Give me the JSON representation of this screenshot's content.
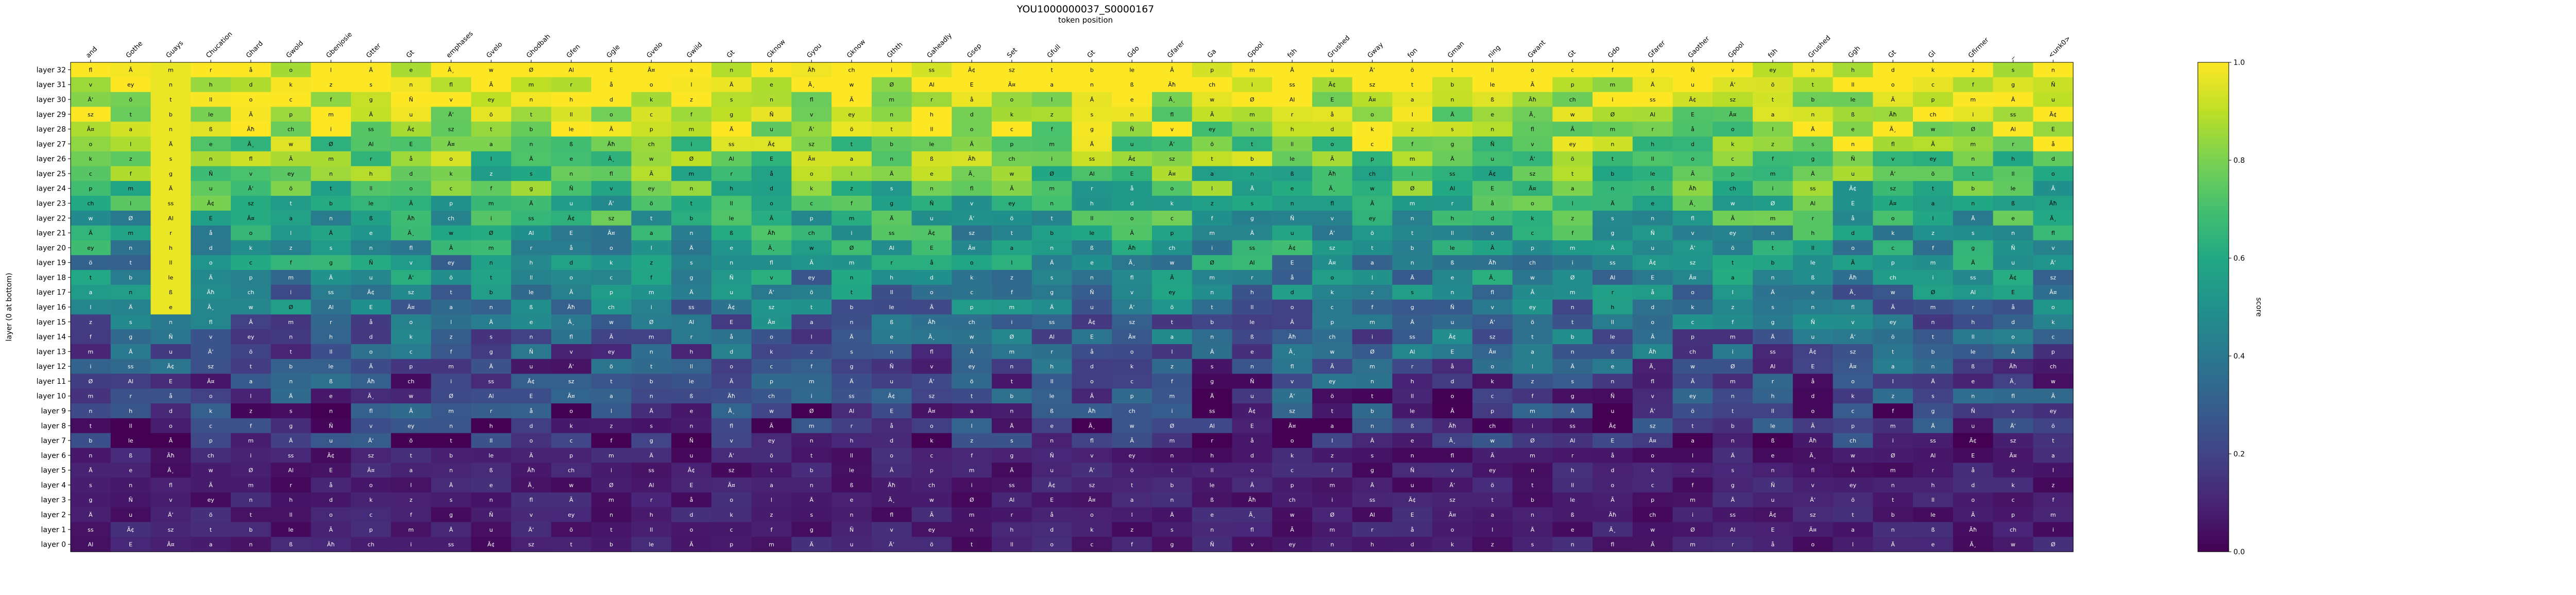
{
  "chart_data": {
    "type": "heatmap",
    "title": "YOU1000000037_S0000167",
    "subtitle": "token position",
    "ylabel": "layer (0 at bottom)",
    "colorbar_label": "score",
    "colorbar_ticks": [
      "0.0",
      "0.2",
      "0.4",
      "0.6",
      "0.8",
      "1.0"
    ],
    "value_range": [
      0,
      1
    ],
    "colormap": "viridis",
    "x_tick_labels": [
      "and",
      "Gothe",
      "Guays",
      "Chucation",
      "Ghard",
      "Gwold",
      "Gbenjosie",
      "Gtter",
      "Gt",
      "emphases",
      "Gvelo",
      "Ghodbah",
      "Gfen",
      "Ggle",
      "Gvelo",
      "Gwild",
      "Gt",
      "Gknow",
      "Gyou",
      "Gknow",
      "Gthth",
      "Gaheadly",
      "Gsep",
      "Set",
      "Gfull",
      "Gt",
      "Gdo",
      "Gfarer",
      "Ga",
      "Gpool",
      "fsh",
      "Grushed",
      "Gway",
      "fon",
      "Gman",
      "ning",
      "Gwant",
      "Gt",
      "Gdo",
      "Gfarer",
      "Gaother",
      "Gpool",
      "fsh",
      "Grushed",
      "Ggh",
      "Gt",
      "Gl",
      "Gfirmer",
      "_",
      "<unk0>"
    ],
    "y_tick_labels": [
      "layer 32",
      "layer 31",
      "layer 30",
      "layer 29",
      "layer 28",
      "layer 27",
      "layer 26",
      "layer 25",
      "layer 24",
      "layer 23",
      "layer 22",
      "layer 21",
      "layer 20",
      "layer 19",
      "layer 18",
      "layer 17",
      "layer 16",
      "layer 15",
      "layer 14",
      "layer 13",
      "layer 12",
      "layer 11",
      "layer 10",
      "layer 9",
      "layer 8",
      "layer 7",
      "layer 6",
      "layer 5",
      "layer 4",
      "layer 3",
      "layer 2",
      "layer 1",
      "layer 0"
    ],
    "cell_tokens": [
      "Al",
      "o",
      "s",
      "v",
      "t",
      "Ã",
      "i",
      "E",
      "l",
      "n",
      "ey",
      "ll",
      "p",
      "ss",
      "Ã¤",
      "Ä",
      "fl",
      "n",
      "o",
      "m",
      "Ã¢",
      "a",
      "e",
      "Ã",
      "h",
      "c",
      "Ä",
      "sz",
      "n",
      "Ã¸",
      "m",
      "d",
      "f",
      "u",
      "t",
      "ß",
      "w",
      "r",
      "k",
      "g",
      "Ä‘",
      "b",
      "Ãħ",
      "Ø",
      "å",
      "z",
      "Ñ",
      "ö",
      "le",
      "ch"
    ],
    "n_rows": 33,
    "n_cols": 50
  }
}
